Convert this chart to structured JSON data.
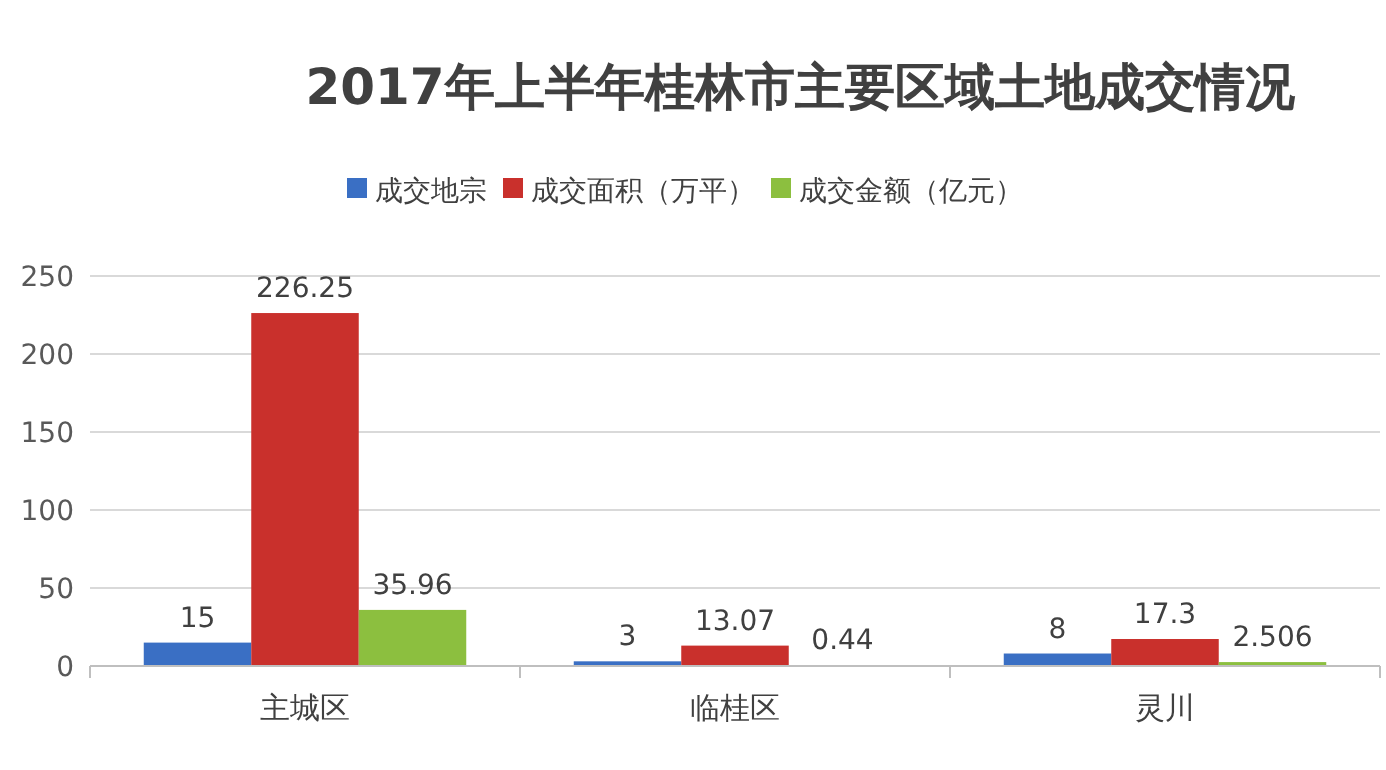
{
  "chart_data": {
    "type": "bar",
    "title": "2017年上半年桂林市主要区域土地成交情况",
    "categories": [
      "主城区",
      "临桂区",
      "灵川"
    ],
    "series": [
      {
        "name": "成交地宗",
        "color": "#3a6fc4",
        "values": [
          15,
          3,
          8
        ]
      },
      {
        "name": "成交面积（万平）",
        "color": "#c9302c",
        "values": [
          226.25,
          13.07,
          17.3
        ]
      },
      {
        "name": "成交金额（亿元）",
        "color": "#8cbf3f",
        "values": [
          35.96,
          0.44,
          2.506
        ]
      }
    ],
    "ylim": [
      0,
      250
    ],
    "yticks": [
      0,
      50,
      100,
      150,
      200,
      250
    ],
    "grid": "y",
    "legend": "top",
    "data_labels": true
  }
}
